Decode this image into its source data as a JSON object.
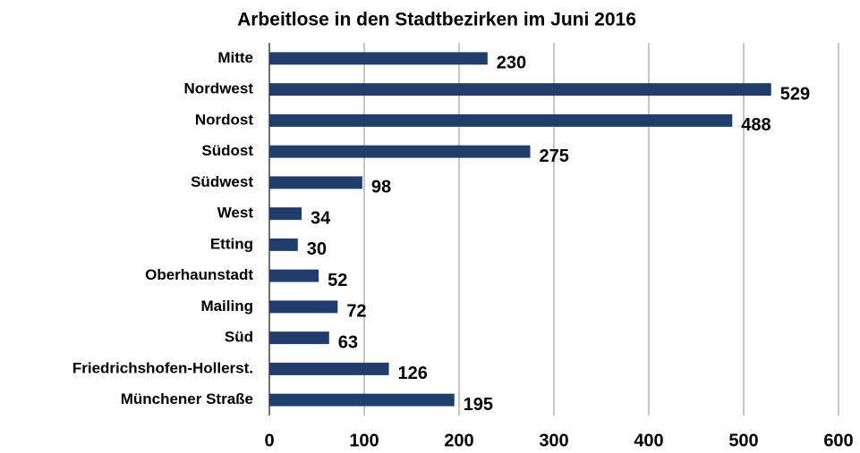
{
  "chart_data": {
    "type": "bar",
    "orientation": "horizontal",
    "title": "Arbeitlose in den Stadtbezirken im Juni 2016",
    "categories": [
      "Mitte",
      "Nordwest",
      "Nordost",
      "Südost",
      "Südwest",
      "West",
      "Etting",
      "Oberhaunstadt",
      "Mailing",
      "Süd",
      "Friedrichshofen-Hollerst.",
      "Münchener Straße"
    ],
    "values": [
      230,
      529,
      488,
      275,
      98,
      34,
      30,
      52,
      72,
      63,
      126,
      195
    ],
    "color": "#203d6b",
    "xlim": [
      0,
      600
    ],
    "xticks": [
      0,
      100,
      200,
      300,
      400,
      500,
      600
    ],
    "grid": true
  }
}
